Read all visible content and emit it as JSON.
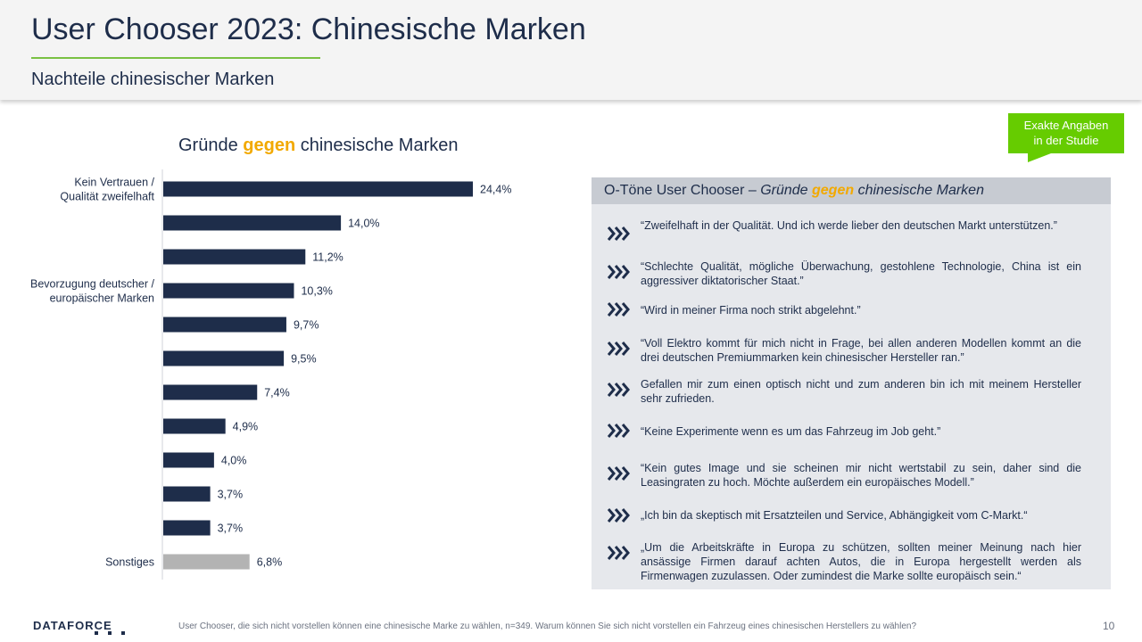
{
  "header": {
    "title": "User Chooser 2023: Chinesische Marken",
    "subtitle": "Nachteile chinesischer Marken"
  },
  "chart_title": {
    "part1": "Gründe ",
    "highlight": "gegen",
    "part2": " chinesische Marken"
  },
  "callout": {
    "line1": "Exakte Angaben",
    "line2": "in der Studie"
  },
  "colors": {
    "primary": "#1e2d4a",
    "other": "#b3b3b3",
    "accent": "#f2a900",
    "green": "#66cc00"
  },
  "chart_data": {
    "type": "bar",
    "orientation": "horizontal",
    "categories": [
      "Kein Vertrauen / Qualität zweifelhaft",
      "",
      "",
      "Bevorzugung deutscher / europäischer Marken",
      "",
      "",
      "",
      "",
      "",
      "",
      "",
      "Sonstiges"
    ],
    "category_lines": [
      [
        "Kein Vertrauen /",
        "Qualität zweifelhaft"
      ],
      [],
      [],
      [
        "Bevorzugung  deutscher /",
        "europäischer  Marken"
      ],
      [],
      [],
      [],
      [],
      [],
      [],
      [],
      [
        "Sonstiges"
      ]
    ],
    "values": [
      24.4,
      14.0,
      11.2,
      10.3,
      9.7,
      9.5,
      7.4,
      4.9,
      4.0,
      3.7,
      3.7,
      6.8
    ],
    "value_labels": [
      "24,4%",
      "14,0%",
      "11,2%",
      "10,3%",
      "9,7%",
      "9,5%",
      "7,4%",
      "4,9%",
      "4,0%",
      "3,7%",
      "3,7%",
      "6,8%"
    ],
    "highlight_index": 11,
    "xlim": [
      0,
      24.4
    ],
    "grid": false,
    "legend": "none"
  },
  "quotes": {
    "heading_prefix": "O-Töne User Chooser – ",
    "heading_italic1": "Gründe ",
    "heading_highlight": "gegen",
    "heading_italic2": " chinesische Marken",
    "items": [
      "“Zweifelhaft in der Qualität. Und ich werde lieber den deutschen Markt unterstützen.”",
      "“Schlechte Qualität, mögliche Überwachung, gestohlene Technologie, China ist ein aggressiver diktatorischer Staat.”",
      "“Wird in meiner Firma noch strikt abgelehnt.”",
      "“Voll Elektro kommt für mich nicht in Frage, bei allen anderen Modellen kommt an die drei deutschen Premiummarken kein chinesischer Hersteller ran.”",
      "Gefallen mir zum einen optisch nicht und zum anderen bin ich mit meinem Hersteller sehr zufrieden.",
      "“Keine Experimente wenn es um das Fahrzeug im Job geht.”",
      "“Kein gutes Image und sie scheinen mir nicht wertstabil zu sein, daher sind die Leasingraten zu hoch. Möchte außerdem ein europäisches Modell.”",
      "„Ich bin da skeptisch mit Ersatzteilen und Service, Abhängigkeit vom C-Markt.“",
      "„Um die Arbeitskräfte in Europa zu schützen, sollten meiner Meinung nach hier ansässige Firmen darauf achten Autos, die in Europa hergestellt werden als Firmenwagen zuzulassen. Oder zumindest die Marke sollte europäisch sein.“"
    ]
  },
  "footer": {
    "logo": "DATAFORCE",
    "note": "User Chooser, die sich nicht vorstellen können eine chinesische Marke zu wählen, n=349. Warum können Sie sich nicht vorstellen ein Fahrzeug eines chinesischen Herstellers zu wählen?",
    "page": "10"
  }
}
